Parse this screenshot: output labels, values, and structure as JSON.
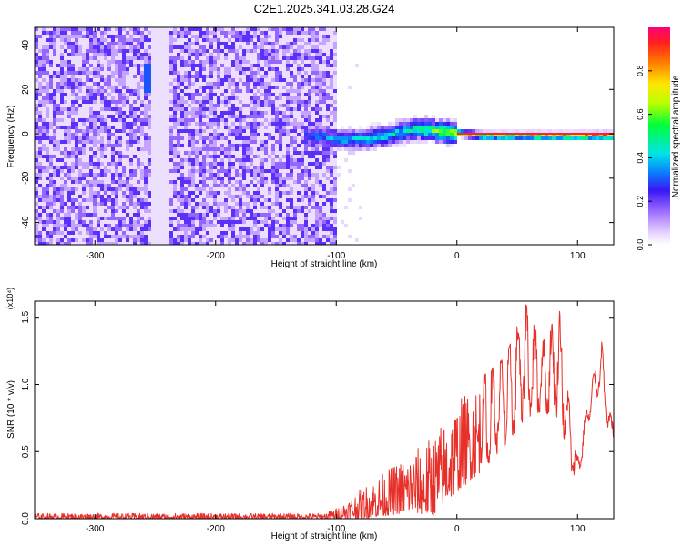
{
  "title": "C2E1.2025.341.03.28.G24",
  "chart_data": [
    {
      "type": "heatmap",
      "title": "C2E1.2025.341.03.28.G24",
      "xlabel": "Height of straight line (km)",
      "ylabel": "Frequency (Hz)",
      "xlim": [
        -350,
        130
      ],
      "ylim": [
        -50,
        48
      ],
      "x_ticks": [
        -300,
        -200,
        -100,
        0,
        100
      ],
      "y_ticks": [
        -40,
        -20,
        0,
        20,
        40
      ],
      "noise_region_x": [
        -350,
        -100
      ],
      "signal_track": [
        {
          "x": -125,
          "f": 0,
          "amp": 0.3
        },
        {
          "x": -110,
          "f": -1,
          "amp": 0.35
        },
        {
          "x": -90,
          "f": -2,
          "amp": 0.4
        },
        {
          "x": -70,
          "f": -1,
          "amp": 0.45
        },
        {
          "x": -50,
          "f": 1,
          "amp": 0.45
        },
        {
          "x": -35,
          "f": 3,
          "amp": 0.5
        },
        {
          "x": -20,
          "f": 2,
          "amp": 0.6
        },
        {
          "x": 0,
          "f": 1,
          "amp": 0.7
        },
        {
          "x": 20,
          "f": 0,
          "amp": 0.8
        },
        {
          "x": 60,
          "f": 0,
          "amp": 0.9
        },
        {
          "x": 130,
          "f": 0,
          "amp": 1.0
        }
      ],
      "colorbar": {
        "label": "Normalized spectral amplitude",
        "range": [
          0,
          1
        ],
        "ticks": [
          0.0,
          0.2,
          0.4,
          0.6,
          0.8
        ],
        "tick_labels": [
          "0.0",
          "0.2",
          "0.4",
          "0.6",
          "0.8"
        ]
      }
    },
    {
      "type": "line",
      "series": [
        {
          "name": "SNR",
          "color": "#e8302a"
        }
      ],
      "xlabel": "Height of straight line (km)",
      "ylabel": "SNR (10 * v/v)",
      "y_multiplier": "(x10⁴)",
      "xlim": [
        -350,
        130
      ],
      "ylim": [
        0,
        1.62
      ],
      "x_ticks": [
        -300,
        -200,
        -100,
        0,
        100
      ],
      "y_ticks": [
        0.0,
        0.5,
        1.0,
        1.5
      ],
      "y_tick_labels": [
        "0.0",
        "0.5",
        "1.0",
        "1.5"
      ],
      "envelope": [
        {
          "x": -350,
          "upper": 0.04,
          "lower": 0.0
        },
        {
          "x": -110,
          "upper": 0.04,
          "lower": 0.0
        },
        {
          "x": -100,
          "upper": 0.08,
          "lower": 0.0
        },
        {
          "x": -80,
          "upper": 0.22,
          "lower": 0.0
        },
        {
          "x": -60,
          "upper": 0.35,
          "lower": 0.02
        },
        {
          "x": -40,
          "upper": 0.48,
          "lower": 0.05
        },
        {
          "x": -20,
          "upper": 0.62,
          "lower": 0.02
        },
        {
          "x": 0,
          "upper": 0.88,
          "lower": 0.2
        },
        {
          "x": 20,
          "upper": 1.05,
          "lower": 0.35
        },
        {
          "x": 40,
          "upper": 1.2,
          "lower": 0.55
        },
        {
          "x": 57,
          "upper": 1.6,
          "lower": 0.75
        },
        {
          "x": 70,
          "upper": 1.3,
          "lower": 0.8
        },
        {
          "x": 85,
          "upper": 1.55,
          "lower": 0.75
        },
        {
          "x": 95,
          "upper": 0.7,
          "lower": 0.35
        },
        {
          "x": 100,
          "upper": 0.45,
          "lower": 0.27
        },
        {
          "x": 110,
          "upper": 0.95,
          "lower": 0.75
        },
        {
          "x": 120,
          "upper": 1.32,
          "lower": 1.0
        },
        {
          "x": 126,
          "upper": 0.8,
          "lower": 0.55
        },
        {
          "x": 130,
          "upper": 0.75,
          "lower": 0.6
        }
      ]
    }
  ]
}
